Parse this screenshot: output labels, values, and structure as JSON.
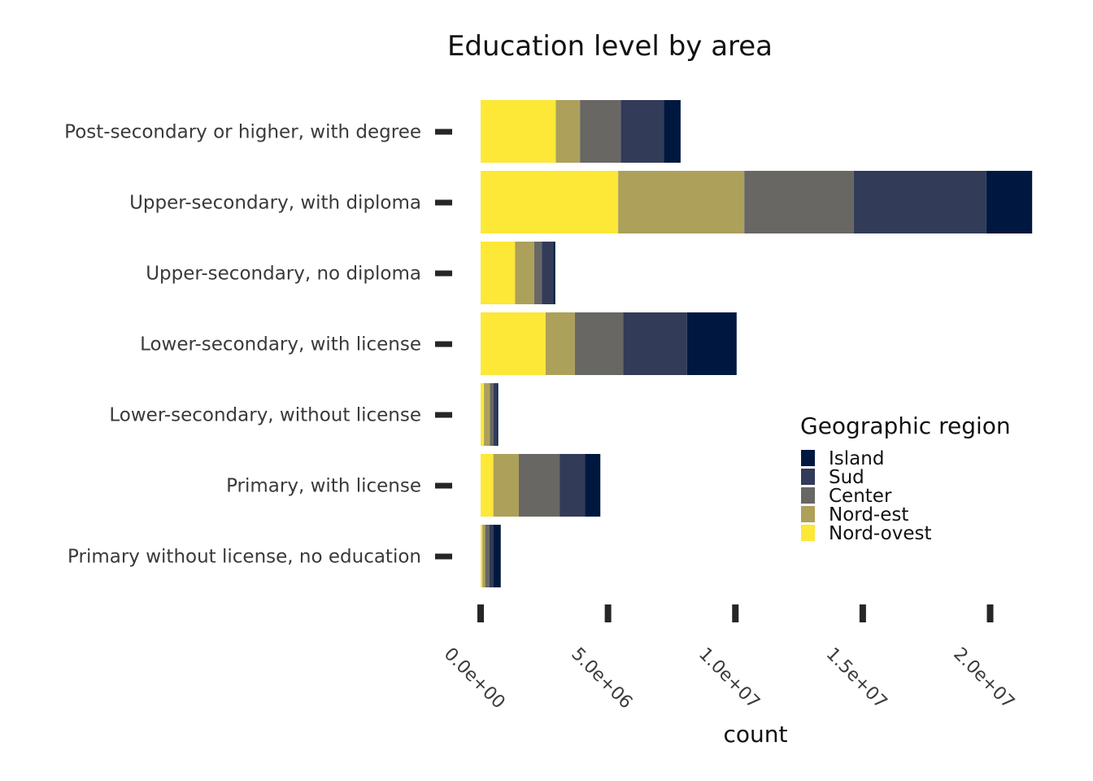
{
  "chart_data": {
    "type": "bar",
    "orientation": "horizontal",
    "stacked": true,
    "title": "Education level by area",
    "xlabel": "count",
    "ylabel": "",
    "xlim": [
      0,
      21500000
    ],
    "x_ticks": [
      0,
      5000000,
      10000000,
      15000000,
      20000000
    ],
    "x_tick_labels": [
      "0.0e+00",
      "5.0e+06",
      "1.0e+07",
      "1.5e+07",
      "2.0e+07"
    ],
    "categories": [
      "Post-secondary or higher, with degree",
      "Upper-secondary, with diploma",
      "Upper-secondary, no diploma",
      "Lower-secondary, with license",
      "Lower-secondary, without license",
      "Primary, with license",
      "Primary without license, no education"
    ],
    "series": [
      {
        "name": "Nord-ovest",
        "color": "#FDE737",
        "values": [
          2950000,
          5400000,
          1350000,
          2550000,
          130000,
          500000,
          70000
        ]
      },
      {
        "name": "Nord-est",
        "color": "#ADA05A",
        "values": [
          950000,
          4950000,
          750000,
          1150000,
          230000,
          1000000,
          110000
        ]
      },
      {
        "name": "Center",
        "color": "#686763",
        "values": [
          1600000,
          4300000,
          300000,
          1900000,
          150000,
          1600000,
          160000
        ]
      },
      {
        "name": "Sud",
        "color": "#323B58",
        "values": [
          1700000,
          5200000,
          450000,
          2500000,
          120000,
          1000000,
          170000
        ]
      },
      {
        "name": "Island",
        "color": "#00183F",
        "values": [
          650000,
          1800000,
          80000,
          1950000,
          60000,
          600000,
          280000
        ]
      }
    ],
    "legend": {
      "title": "Geographic region",
      "position": "right",
      "entries": [
        "Island",
        "Sud",
        "Center",
        "Nord-est",
        "Nord-ovest"
      ]
    },
    "grid": false
  }
}
